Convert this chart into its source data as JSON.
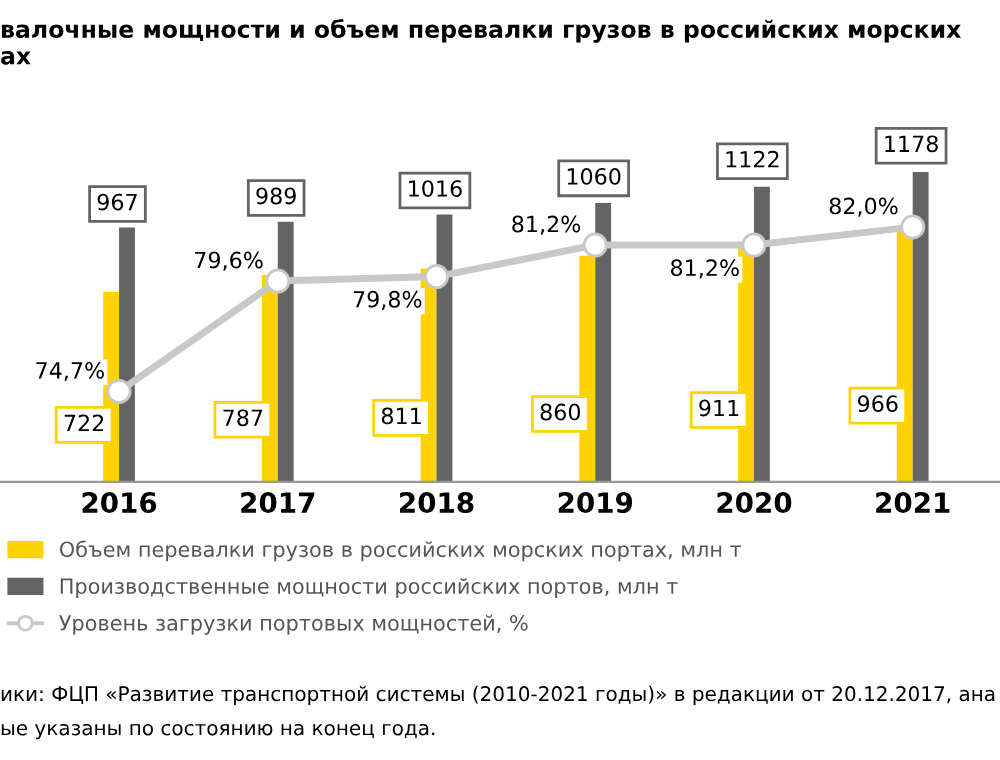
{
  "chart_data": {
    "type": "bar",
    "title": "валочные мощности и объем перевалки грузов в российских морских\nах",
    "categories": [
      "2016",
      "2017",
      "2018",
      "2019",
      "2020",
      "2021"
    ],
    "series": [
      {
        "name": "Объем перевалки грузов в российских морских портах, млн т",
        "color": "#ffd200",
        "values": [
          722,
          787,
          811,
          860,
          911,
          966
        ]
      },
      {
        "name": "Производственные мощности российских портов, млн т",
        "color": "#646464",
        "values": [
          967,
          989,
          1016,
          1060,
          1122,
          1178
        ]
      },
      {
        "name": "Уровень загрузки портовых мощностей, %",
        "type": "line",
        "axis": "y2",
        "color": "#c8c8c8",
        "marker": "circle",
        "value_labels": [
          "74,7%",
          "79,6%",
          "79,8%",
          "81,2%",
          "81,2%",
          "82,0%"
        ],
        "values": [
          74.7,
          79.6,
          79.8,
          81.2,
          81.2,
          82.0
        ]
      }
    ],
    "data_labels": true,
    "tick_labels": "x",
    "grid": false,
    "legend": "bottom left",
    "annotations": [
      "ики: ФЦП «Развитие транспортной системы (2010-2021 годы)» в редакции от 20.12.2017, ана",
      "ые указаны по состоянию на конец года."
    ]
  }
}
